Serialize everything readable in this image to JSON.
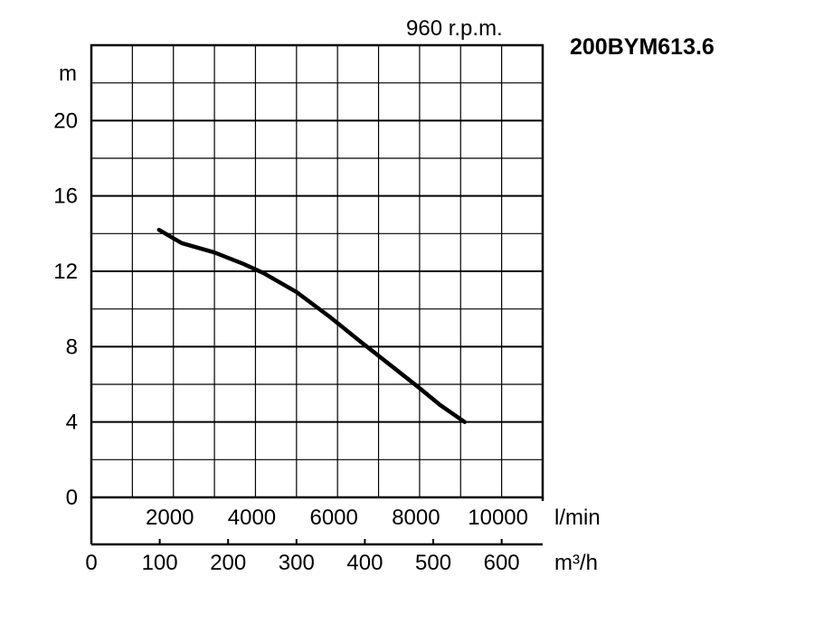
{
  "title": "200BYM613.6",
  "speed_label": "960 r.p.m.",
  "chart_data": {
    "type": "line",
    "title": "200BYM613.6",
    "subtitle": "960 r.p.m.",
    "ylabel": "m",
    "xlabel_primary_unit": "l/min",
    "xlabel_secondary_unit": "m³/h",
    "ylim": [
      0,
      24
    ],
    "y_ticks": [
      "0",
      "4",
      "8",
      "12",
      "16",
      "20"
    ],
    "xlim_lmin": [
      0,
      11000
    ],
    "x_ticks_lmin": [
      "2000",
      "4000",
      "6000",
      "8000",
      "10000"
    ],
    "x_ticks_m3h": [
      "0",
      "100",
      "200",
      "300",
      "400",
      "500",
      "600"
    ],
    "grid": true,
    "series": [
      {
        "x_lmin": [
          1650,
          2200,
          3000,
          3700,
          4200,
          5000,
          5800,
          6600,
          7300,
          8000,
          8500,
          9100
        ],
        "y_m": [
          14.2,
          13.5,
          13.0,
          12.4,
          11.9,
          10.9,
          9.6,
          8.2,
          7.0,
          5.8,
          4.9,
          4.0
        ]
      }
    ]
  }
}
